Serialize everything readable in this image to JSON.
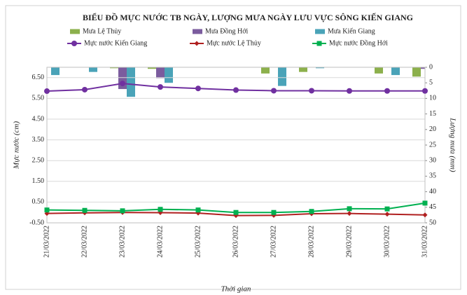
{
  "chart_data": {
    "type": "bar-line",
    "title": "BIỂU ĐỒ MỰC NƯỚC TB NGÀY, LƯỢNG MƯA NGÀY LƯU VỰC SÔNG KIẾN GIANG",
    "x_label": "Thời gian",
    "y_label": "Mực nước (cm)",
    "y2_label": "Lượng mưa (mm)",
    "categories": [
      "21/03/2022",
      "22/03/2022",
      "23/03/2022",
      "24/03/2022",
      "25/03/2022",
      "26/03/2022",
      "27/03/2022",
      "28/03/2022",
      "29/03/2022",
      "30/03/2022",
      "31/03/2022"
    ],
    "ylim": [
      -0.5,
      7
    ],
    "yticks": [
      {
        "value": -0.5,
        "label": "-0.50"
      },
      {
        "value": 0.5,
        "label": "0.50"
      },
      {
        "value": 1.5,
        "label": "1.50"
      },
      {
        "value": 2.5,
        "label": "2.50"
      },
      {
        "value": 3.5,
        "label": "3.50"
      },
      {
        "value": 4.5,
        "label": "4.50"
      },
      {
        "value": 5.5,
        "label": "5.50"
      },
      {
        "value": 6.5,
        "label": "6.50"
      }
    ],
    "y2lim": [
      0,
      50
    ],
    "y2ticks": [
      0,
      5,
      10,
      15,
      20,
      25,
      30,
      35,
      40,
      45,
      50
    ],
    "y2_inverted": true,
    "grid": true,
    "series": [
      {
        "name": "Mưa Lệ Thủy",
        "kind": "bar",
        "axis": "y2",
        "color": "#8cb04c",
        "values": [
          0,
          0,
          0.3,
          0.5,
          0,
          0,
          2,
          1.5,
          0,
          2,
          3
        ]
      },
      {
        "name": "Mưa Đồng Hới",
        "kind": "bar",
        "axis": "y2",
        "color": "#7b5c9e",
        "values": [
          0,
          0,
          7,
          3.5,
          0,
          0,
          0,
          0,
          0,
          0,
          0.5
        ]
      },
      {
        "name": "Mưa Kiến Giang",
        "kind": "bar",
        "axis": "y2",
        "color": "#4aa3b8",
        "values": [
          2.5,
          1.5,
          9.5,
          5,
          0,
          0,
          6,
          0.3,
          0,
          2.5,
          0
        ]
      },
      {
        "name": "Mực nước Kiến Giang",
        "kind": "line",
        "marker": "circle",
        "color": "#7030a0",
        "values": [
          5.85,
          5.92,
          6.22,
          6.05,
          5.98,
          5.9,
          5.87,
          5.87,
          5.86,
          5.86,
          5.86
        ]
      },
      {
        "name": "Mực nước Lệ Thủy",
        "kind": "line",
        "marker": "diamond",
        "color": "#b02020",
        "values": [
          -0.05,
          -0.02,
          0,
          -0.01,
          -0.03,
          -0.15,
          -0.14,
          -0.06,
          -0.05,
          -0.08,
          -0.12
        ]
      },
      {
        "name": "Mực nước Đồng Hới",
        "kind": "line",
        "marker": "square",
        "color": "#00b050",
        "values": [
          0.12,
          0.1,
          0.08,
          0.15,
          0.12,
          0,
          0,
          0.05,
          0.18,
          0.17,
          0.45
        ]
      }
    ]
  }
}
